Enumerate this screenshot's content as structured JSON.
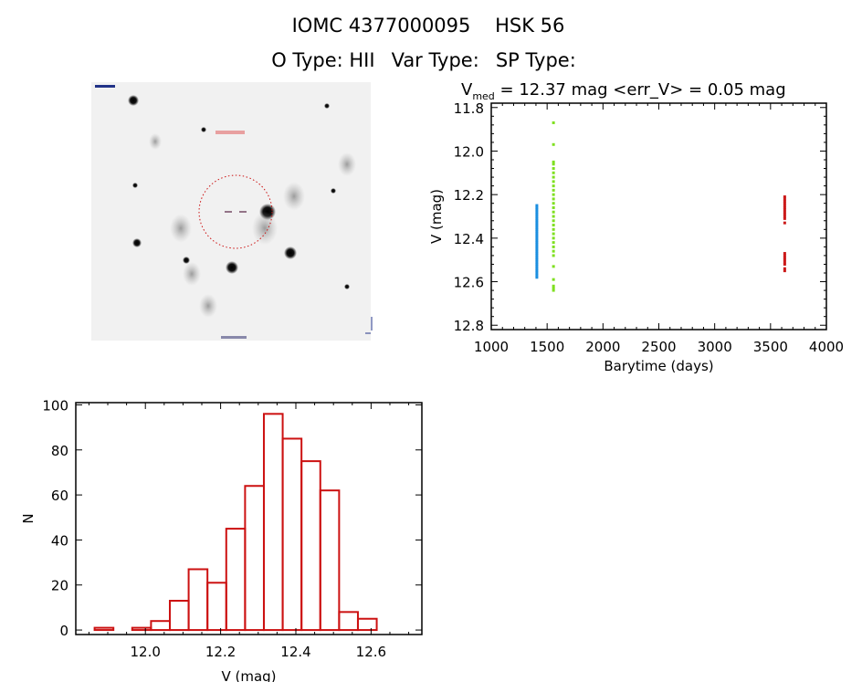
{
  "header": {
    "star_id": "IOMC 4377000095",
    "star_name": "HSK 56",
    "object_type": "O Type: HII",
    "var_type": "Var Type:",
    "sp_type": "SP Type:"
  },
  "colors": {
    "axis": "#000000",
    "histogram": "#cc1111",
    "series_1": "#1a8fe0",
    "series_2": "#7fe020",
    "series_3": "#cc1a1a",
    "finder_circle": "#cc1111"
  },
  "finder_image": {
    "description_icon": "sky-image"
  },
  "chart_data": [
    {
      "type": "scatter",
      "title_prefix": "V",
      "title_sub": "med",
      "title_rest": " = 12.37 mag <err_V> = 0.05 mag",
      "xlabel": "Barytime (days)",
      "ylabel": "V (mag)",
      "xlim": [
        1000,
        4000
      ],
      "ylim": [
        11.78,
        12.82
      ],
      "y_inverted": true,
      "xticks": [
        1000,
        1500,
        2000,
        2500,
        3000,
        3500,
        4000
      ],
      "xtick_labels": [
        "1000",
        "1500",
        "2000",
        "2500",
        "3000",
        "3500",
        "4000"
      ],
      "yticks": [
        11.8,
        12.0,
        12.2,
        12.4,
        12.6,
        12.8
      ],
      "ytick_labels": [
        "11.8",
        "12.0",
        "12.2",
        "12.4",
        "12.6",
        "12.8"
      ],
      "series": [
        {
          "name": "season 1",
          "color": "#1a8fe0",
          "x": 1408,
          "y": [
            12.25,
            12.26,
            12.27,
            12.28,
            12.29,
            12.3,
            12.31,
            12.32,
            12.33,
            12.34,
            12.35,
            12.36,
            12.37,
            12.38,
            12.39,
            12.4,
            12.41,
            12.42,
            12.43,
            12.44,
            12.45,
            12.46,
            12.47,
            12.48,
            12.49,
            12.5,
            12.51,
            12.52,
            12.53,
            12.54,
            12.55,
            12.56,
            12.57,
            12.58
          ]
        },
        {
          "name": "season 2",
          "color": "#7fe020",
          "x": 1557,
          "y": [
            11.87,
            11.97,
            12.05,
            12.06,
            12.08,
            12.1,
            12.12,
            12.14,
            12.16,
            12.18,
            12.2,
            12.22,
            12.24,
            12.26,
            12.28,
            12.3,
            12.32,
            12.34,
            12.36,
            12.38,
            12.4,
            12.42,
            12.44,
            12.46,
            12.48,
            12.53,
            12.59,
            12.62,
            12.63,
            12.64
          ]
        },
        {
          "name": "season 3",
          "color": "#cc1a1a",
          "x": 3627,
          "y": [
            12.21,
            12.22,
            12.23,
            12.24,
            12.25,
            12.26,
            12.27,
            12.28,
            12.29,
            12.3,
            12.31,
            12.33,
            12.47,
            12.48,
            12.49,
            12.5,
            12.51,
            12.52,
            12.54,
            12.55
          ]
        }
      ]
    },
    {
      "type": "bar",
      "subtype": "histogram",
      "xlabel": "V (mag)",
      "ylabel": "N",
      "bin_start": 11.865,
      "bin_width": 0.05,
      "values": [
        1,
        0,
        1,
        4,
        13,
        27,
        21,
        45,
        64,
        96,
        85,
        75,
        62,
        8,
        5
      ],
      "xlim": [
        11.815,
        12.735
      ],
      "ylim": [
        -2,
        101
      ],
      "xticks": [
        12.0,
        12.2,
        12.4,
        12.6
      ],
      "xtick_labels": [
        "12.0",
        "12.2",
        "12.4",
        "12.6"
      ],
      "yticks": [
        0,
        20,
        40,
        60,
        80,
        100
      ],
      "ytick_labels": [
        "0",
        "20",
        "40",
        "60",
        "80",
        "100"
      ]
    }
  ]
}
